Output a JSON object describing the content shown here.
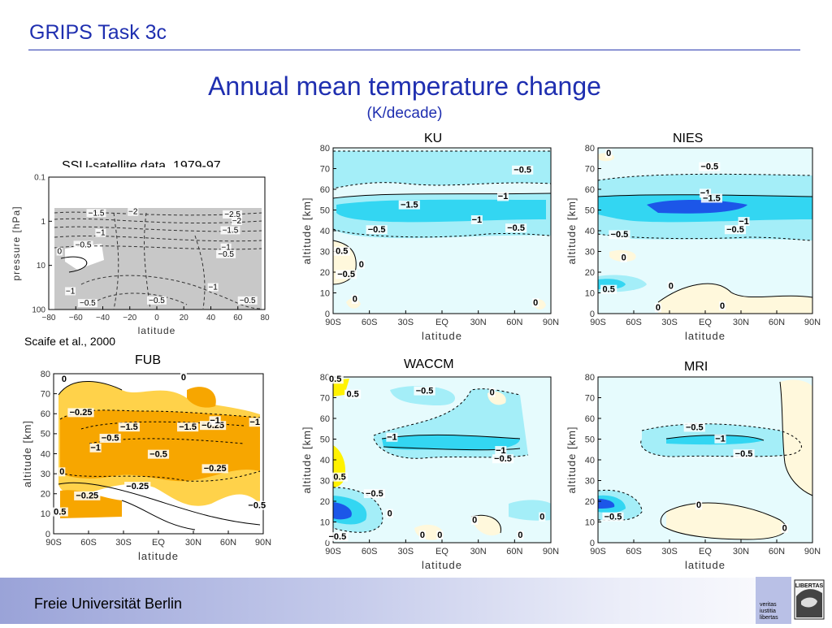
{
  "header": {
    "title": "GRIPS Task 3c"
  },
  "main": {
    "title": "Annual mean temperature change",
    "subtitle": "(K/decade)"
  },
  "footer": {
    "university": "Freie Universität Berlin",
    "seal_text": "LIBERTAS",
    "motto": [
      "veritas",
      "iustitia",
      "libertas"
    ]
  },
  "colors": {
    "brand_blue": "#1f2fb0",
    "light_cyan": "#e6fbfd",
    "cyan": "#a4eef8",
    "deep_cyan": "#33d6f2",
    "blue": "#1c56e8",
    "cream": "#fff8dc",
    "yellow": "#fff200",
    "orange": "#f7a600",
    "light_orange": "#ffd24a",
    "gray": "#c8c8c8"
  },
  "chart_data": [
    {
      "id": "ssu",
      "type": "heatmap",
      "title": "SSU-satellite data, 1979-97",
      "citation": "Scaife et al., 2000",
      "xlabel": "latitude",
      "ylabel": "pressure [hPa]",
      "xlim": [
        -80,
        80
      ],
      "xticks": [
        "−80",
        "−60",
        "−40",
        "−20",
        "0",
        "20",
        "40",
        "60",
        "80"
      ],
      "y_scale": "log",
      "ylim": [
        100,
        0.1
      ],
      "yticks": [
        "0.1",
        "1",
        "10",
        "100"
      ],
      "contour_labels": [
        "−1.5",
        "−2",
        "−2.5",
        "−2",
        "−1.5",
        "−1",
        "−1",
        "−0.5",
        "−0.5",
        "0",
        "−1",
        "−0.5",
        "−0.5",
        "−1",
        "−0.5"
      ]
    },
    {
      "id": "ku",
      "type": "heatmap",
      "title": "KU",
      "xlabel": "latitude",
      "ylabel": "altitude [km]",
      "xticks": [
        "90S",
        "60S",
        "30S",
        "EQ",
        "30N",
        "60N",
        "90N"
      ],
      "yticks": [
        "0",
        "10",
        "20",
        "30",
        "40",
        "50",
        "60",
        "70",
        "80"
      ],
      "ylim": [
        0,
        80
      ],
      "contour_labels": [
        "−0.5",
        "−1",
        "−1.5",
        "−1",
        "−0.5",
        "−0.5",
        "0.5",
        "0",
        "−0.5",
        "0",
        "0"
      ]
    },
    {
      "id": "nies",
      "type": "heatmap",
      "title": "NIES",
      "xlabel": "latitude",
      "ylabel": "altitude [km]",
      "xticks": [
        "90S",
        "60S",
        "30S",
        "EQ",
        "30N",
        "60N",
        "90N"
      ],
      "yticks": [
        "0",
        "10",
        "20",
        "30",
        "40",
        "50",
        "60",
        "70",
        "80"
      ],
      "ylim": [
        0,
        80
      ],
      "contour_labels": [
        "0",
        "−0.5",
        "−1",
        "−1.5",
        "−1",
        "−0.5",
        "−0.5",
        "0",
        "0",
        "0.5",
        "0",
        "0"
      ]
    },
    {
      "id": "fub",
      "type": "heatmap",
      "title": "FUB",
      "xlabel": "latitude",
      "ylabel": "altitude [km]",
      "xticks": [
        "90S",
        "60S",
        "30S",
        "EQ",
        "30N",
        "60N",
        "90N"
      ],
      "yticks": [
        "0",
        "10",
        "20",
        "30",
        "40",
        "50",
        "60",
        "70",
        "80"
      ],
      "ylim": [
        0,
        80
      ],
      "contour_labels": [
        "0",
        "0",
        "−0.25",
        "−0.25",
        "−1",
        "−0.5",
        "−1.5",
        "−1.5",
        "−1",
        "−1",
        "−0.5",
        "−0.25",
        "0",
        "−0.25",
        "−0.25",
        "0.5",
        "−0.5"
      ]
    },
    {
      "id": "waccm",
      "type": "heatmap",
      "title": "WACCM",
      "xlabel": "latitude",
      "ylabel": "altitude [km]",
      "xticks": [
        "90S",
        "60S",
        "30S",
        "EQ",
        "30N",
        "60N",
        "90N"
      ],
      "yticks": [
        "0",
        "10",
        "20",
        "30",
        "40",
        "50",
        "60",
        "70",
        "80"
      ],
      "ylim": [
        0,
        80
      ],
      "contour_labels": [
        "0.5",
        "0.5",
        "−0.5",
        "0",
        "−1",
        "−1",
        "−0.5",
        "0.5",
        "−0.5",
        "0",
        "0",
        "0",
        "0",
        "−0.5",
        "0",
        "0"
      ]
    },
    {
      "id": "mri",
      "type": "heatmap",
      "title": "MRI",
      "xlabel": "latitude",
      "ylabel": "altitude [km]",
      "xticks": [
        "90S",
        "60S",
        "30S",
        "EQ",
        "30N",
        "60N",
        "90N"
      ],
      "yticks": [
        "0",
        "10",
        "20",
        "30",
        "40",
        "50",
        "60",
        "70",
        "80"
      ],
      "ylim": [
        0,
        80
      ],
      "contour_labels": [
        "−0.5",
        "−1",
        "−0.5",
        "−0.5",
        "0",
        "0"
      ]
    }
  ]
}
